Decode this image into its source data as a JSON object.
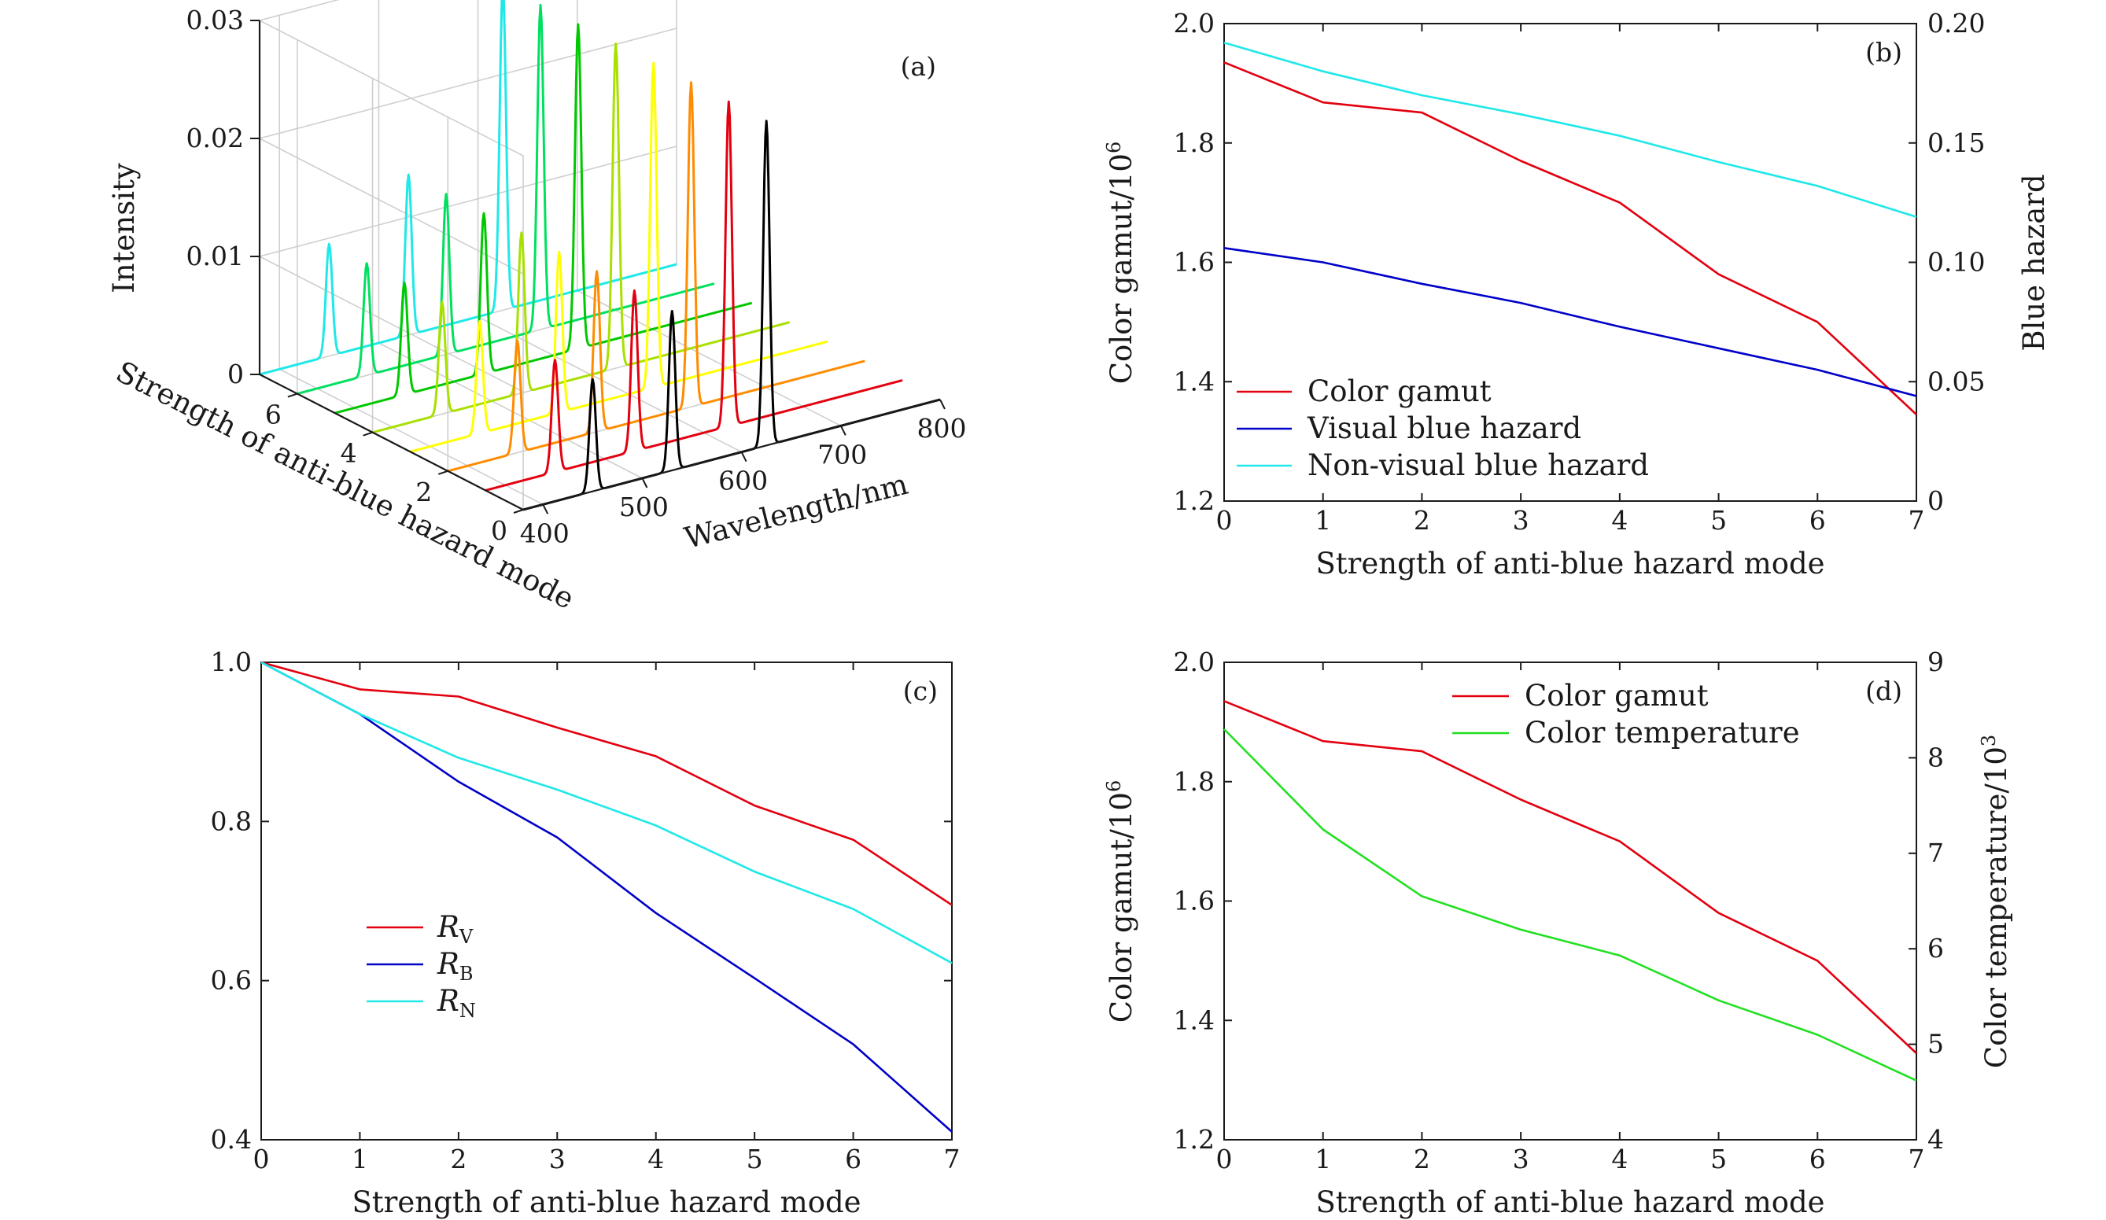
{
  "chart_data": [
    {
      "panel": "a",
      "type": "line",
      "panel_label": "(a)",
      "xlabel": "Wavelength/nm",
      "ylabel": "Strength of anti-blue hazard mode",
      "zlabel": "Intensity",
      "x_ticks": [
        "400",
        "500",
        "600",
        "700",
        "800"
      ],
      "y_ticks": [
        "0",
        "2",
        "4",
        "6"
      ],
      "z_ticks": [
        "0",
        "0.01",
        "0.02",
        "0.03"
      ],
      "xlim": [
        380,
        800
      ],
      "ylim": [
        0,
        7
      ],
      "zlim": [
        0,
        0.03
      ],
      "series": [
        {
          "mode": 0,
          "color": "#000000",
          "peaks": [
            {
              "x": 450,
              "z": 0.0095
            },
            {
              "x": 530,
              "z": 0.0135
            },
            {
              "x": 625,
              "z": 0.0275
            }
          ]
        },
        {
          "mode": 1,
          "color": "#e3000f",
          "peaks": [
            {
              "x": 450,
              "z": 0.0095
            },
            {
              "x": 530,
              "z": 0.0136
            },
            {
              "x": 625,
              "z": 0.0275
            }
          ]
        },
        {
          "mode": 2,
          "color": "#ff8c00",
          "peaks": [
            {
              "x": 450,
              "z": 0.0095
            },
            {
              "x": 530,
              "z": 0.0136
            },
            {
              "x": 625,
              "z": 0.0275
            }
          ]
        },
        {
          "mode": 3,
          "color": "#ffff00",
          "peaks": [
            {
              "x": 450,
              "z": 0.0095
            },
            {
              "x": 530,
              "z": 0.0136
            },
            {
              "x": 625,
              "z": 0.0275
            }
          ]
        },
        {
          "mode": 4,
          "color": "#a8e000",
          "peaks": [
            {
              "x": 450,
              "z": 0.0095
            },
            {
              "x": 530,
              "z": 0.0136
            },
            {
              "x": 625,
              "z": 0.0275
            }
          ]
        },
        {
          "mode": 5,
          "color": "#00c800",
          "peaks": [
            {
              "x": 450,
              "z": 0.0095
            },
            {
              "x": 530,
              "z": 0.0136
            },
            {
              "x": 625,
              "z": 0.0275
            }
          ]
        },
        {
          "mode": 6,
          "color": "#00e060",
          "peaks": [
            {
              "x": 450,
              "z": 0.0095
            },
            {
              "x": 530,
              "z": 0.0136
            },
            {
              "x": 625,
              "z": 0.0275
            }
          ]
        },
        {
          "mode": 7,
          "color": "#20e8e8",
          "peaks": [
            {
              "x": 450,
              "z": 0.0095
            },
            {
              "x": 530,
              "z": 0.0136
            },
            {
              "x": 625,
              "z": 0.0275
            }
          ]
        }
      ]
    },
    {
      "panel": "b",
      "type": "line",
      "panel_label": "(b)",
      "xlabel": "Strength of anti-blue hazard mode",
      "ylabel": "Color gamut/10",
      "ylabel_sup": "6",
      "y2label": "Blue hazard",
      "x": [
        0,
        1,
        2,
        3,
        4,
        5,
        6,
        7
      ],
      "xlim": [
        0,
        7
      ],
      "ylim": [
        1.2,
        2.0
      ],
      "y2lim": [
        0,
        0.2
      ],
      "x_ticks": [
        "0",
        "1",
        "2",
        "3",
        "4",
        "5",
        "6",
        "7"
      ],
      "y_ticks": [
        "1.2",
        "1.4",
        "1.6",
        "1.8",
        "2.0"
      ],
      "y2_ticks": [
        "0",
        "0.05",
        "0.10",
        "0.15",
        "0.20"
      ],
      "legend_position": "bottom-left",
      "series": [
        {
          "name": "Color gamut",
          "axis": "left",
          "color": "#e3000f",
          "values": [
            1.935,
            1.868,
            1.851,
            1.77,
            1.7,
            1.58,
            1.5,
            1.345
          ]
        },
        {
          "name": "Visual blue hazard",
          "axis": "right",
          "color": "#0000c8",
          "values": [
            0.106,
            0.1,
            0.091,
            0.083,
            0.073,
            0.064,
            0.055,
            0.044
          ]
        },
        {
          "name": "Non-visual blue hazard",
          "axis": "right",
          "color": "#20e8e8",
          "values": [
            0.192,
            0.18,
            0.17,
            0.162,
            0.153,
            0.142,
            0.132,
            0.119
          ]
        }
      ]
    },
    {
      "panel": "c",
      "type": "line",
      "panel_label": "(c)",
      "xlabel": "Strength of anti-blue hazard mode",
      "ylabel": "",
      "x": [
        0,
        1,
        2,
        3,
        4,
        5,
        6,
        7
      ],
      "xlim": [
        0,
        7
      ],
      "ylim": [
        0.4,
        1.0
      ],
      "x_ticks": [
        "0",
        "1",
        "2",
        "3",
        "4",
        "5",
        "6",
        "7"
      ],
      "y_ticks": [
        "0.4",
        "0.6",
        "0.8",
        "1.0"
      ],
      "legend_position": "center-left",
      "series": [
        {
          "name": "R",
          "sub": "V",
          "color": "#e3000f",
          "values": [
            1.0,
            0.966,
            0.957,
            0.918,
            0.882,
            0.82,
            0.777,
            0.695
          ]
        },
        {
          "name": "R",
          "sub": "B",
          "color": "#0000c8",
          "values": [
            1.0,
            0.935,
            0.85,
            0.78,
            0.685,
            0.603,
            0.52,
            0.41
          ]
        },
        {
          "name": "R",
          "sub": "N",
          "color": "#20e8e8",
          "values": [
            1.0,
            0.935,
            0.88,
            0.84,
            0.795,
            0.737,
            0.69,
            0.622
          ]
        }
      ]
    },
    {
      "panel": "d",
      "type": "line",
      "panel_label": "(d)",
      "xlabel": "Strength of anti-blue hazard mode",
      "ylabel": "Color gamut/10",
      "ylabel_sup": "6",
      "y2label": "Color temperature/10",
      "y2label_sup": "3",
      "x": [
        0,
        1,
        2,
        3,
        4,
        5,
        6,
        7
      ],
      "xlim": [
        0,
        7
      ],
      "ylim": [
        1.2,
        2.0
      ],
      "y2lim": [
        4,
        9
      ],
      "x_ticks": [
        "0",
        "1",
        "2",
        "3",
        "4",
        "5",
        "6",
        "7"
      ],
      "y_ticks": [
        "1.2",
        "1.4",
        "1.6",
        "1.8",
        "2.0"
      ],
      "y2_ticks": [
        "4",
        "5",
        "6",
        "7",
        "8",
        "9"
      ],
      "legend_position": "top-center",
      "series": [
        {
          "name": "Color gamut",
          "axis": "left",
          "color": "#e3000f",
          "values": [
            1.935,
            1.868,
            1.851,
            1.77,
            1.7,
            1.58,
            1.5,
            1.345
          ]
        },
        {
          "name": "Color temperature",
          "axis": "right",
          "color": "#22e022",
          "values": [
            8.3,
            7.25,
            6.55,
            6.2,
            5.93,
            5.46,
            5.1,
            4.62
          ]
        }
      ]
    }
  ]
}
